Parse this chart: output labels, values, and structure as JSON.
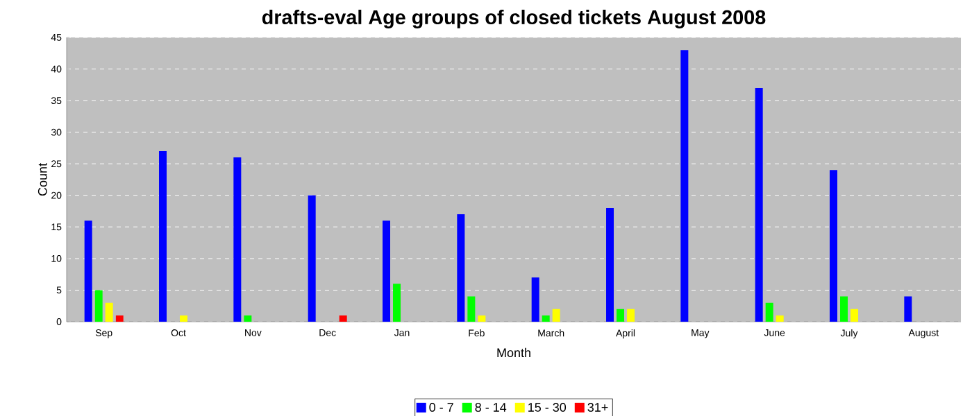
{
  "chart_data": {
    "type": "bar",
    "title": "drafts-eval Age groups of closed tickets August 2008",
    "xlabel": "Month",
    "ylabel": "Count",
    "categories": [
      "Sep",
      "Oct",
      "Nov",
      "Dec",
      "Jan",
      "Feb",
      "March",
      "April",
      "May",
      "June",
      "July",
      "August"
    ],
    "series": [
      {
        "name": "0 - 7",
        "color": "#0000ff",
        "values": [
          16,
          27,
          26,
          20,
          16,
          17,
          7,
          18,
          43,
          37,
          24,
          4
        ]
      },
      {
        "name": "8 - 14",
        "color": "#00ff00",
        "values": [
          5,
          0,
          1,
          0,
          6,
          4,
          1,
          2,
          0,
          3,
          4,
          0
        ]
      },
      {
        "name": "15 - 30",
        "color": "#ffff00",
        "values": [
          3,
          1,
          0,
          0,
          0,
          1,
          2,
          2,
          0,
          1,
          2,
          0
        ]
      },
      {
        "name": "31+",
        "color": "#ff0000",
        "values": [
          1,
          0,
          0,
          1,
          0,
          0,
          0,
          0,
          0,
          0,
          0,
          0
        ]
      }
    ],
    "ylim": [
      0,
      45
    ],
    "yticks": [
      0,
      5,
      10,
      15,
      20,
      25,
      30,
      35,
      40,
      45
    ],
    "grid": "y",
    "legend": "bottom"
  }
}
